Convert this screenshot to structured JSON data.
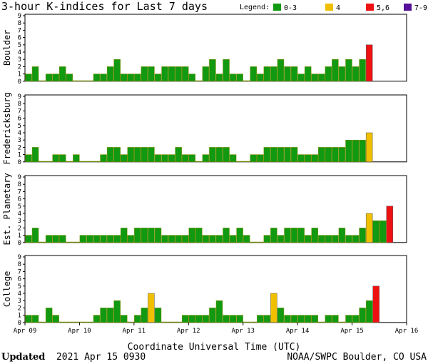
{
  "chart_data": {
    "type": "bar",
    "title": "3-hour K-indices for Last 7 days",
    "legend": {
      "label": "Legend:",
      "placement": "top-right",
      "items": [
        {
          "text": "0-3",
          "color": "#119911"
        },
        {
          "text": "4",
          "color": "#f0c000"
        },
        {
          "text": "5,6",
          "color": "#ee1111"
        },
        {
          "text": "7-9",
          "color": "#551199"
        }
      ]
    },
    "xlabel": "Coordinate Universal Time (UTC)",
    "x_ticks": [
      "Apr 09",
      "Apr 10",
      "Apr 11",
      "Apr 12",
      "Apr 13",
      "Apr 14",
      "Apr 15",
      "Apr 16"
    ],
    "y_ticks": [
      "0",
      "1",
      "2",
      "3",
      "4",
      "5",
      "6",
      "7",
      "8",
      "9"
    ],
    "ylim": [
      0,
      9
    ],
    "bars_per_day": 8,
    "panels": [
      {
        "name": "Boulder",
        "values": [
          1,
          2,
          0,
          1,
          1,
          2,
          1,
          0,
          0,
          0,
          1,
          1,
          2,
          3,
          1,
          1,
          1,
          2,
          2,
          1,
          2,
          2,
          2,
          2,
          1,
          0,
          2,
          3,
          1,
          3,
          1,
          1,
          0,
          2,
          1,
          2,
          2,
          3,
          2,
          2,
          1,
          2,
          1,
          1,
          2,
          3,
          2,
          3,
          2,
          3,
          5
        ]
      },
      {
        "name": "Fredericksburg",
        "values": [
          1,
          2,
          0,
          0,
          1,
          1,
          0,
          1,
          0,
          0,
          0,
          1,
          2,
          2,
          1,
          2,
          2,
          2,
          2,
          1,
          1,
          1,
          2,
          1,
          1,
          0,
          1,
          2,
          2,
          2,
          1,
          0,
          0,
          1,
          1,
          2,
          2,
          2,
          2,
          2,
          1,
          1,
          1,
          2,
          2,
          2,
          2,
          3,
          3,
          3,
          4
        ]
      },
      {
        "name": "Est. Planetary",
        "values": [
          1,
          2,
          0,
          1,
          1,
          1,
          0,
          0,
          1,
          1,
          1,
          1,
          1,
          1,
          2,
          1,
          2,
          2,
          2,
          2,
          1,
          1,
          1,
          1,
          2,
          2,
          1,
          1,
          1,
          2,
          1,
          2,
          1,
          0,
          0,
          1,
          2,
          1,
          2,
          2,
          2,
          1,
          2,
          1,
          1,
          1,
          2,
          1,
          1,
          2,
          4,
          3,
          3,
          5
        ]
      },
      {
        "name": "College",
        "values": [
          1,
          1,
          0,
          2,
          1,
          0,
          0,
          0,
          0,
          0,
          1,
          2,
          2,
          3,
          1,
          0,
          1,
          2,
          4,
          2,
          0,
          0,
          0,
          1,
          1,
          1,
          1,
          2,
          3,
          1,
          1,
          1,
          0,
          0,
          1,
          1,
          4,
          2,
          1,
          1,
          1,
          1,
          1,
          0,
          1,
          1,
          0,
          1,
          1,
          2,
          3,
          5
        ]
      }
    ]
  },
  "footer": {
    "updated_label": "Updated",
    "updated_value": "2021 Apr 15 0930",
    "source": "NOAA/SWPC Boulder, CO USA"
  }
}
